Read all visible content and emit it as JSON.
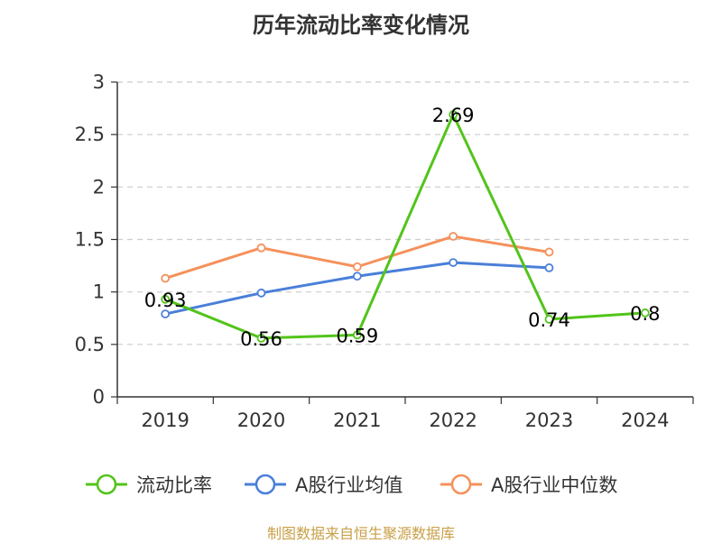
{
  "chart_data": {
    "type": "line",
    "title": "历年流动比率变化情况",
    "categories": [
      "2019",
      "2020",
      "2021",
      "2022",
      "2023",
      "2024"
    ],
    "ylim": [
      0,
      3
    ],
    "yticks": [
      "0",
      "0.5",
      "1",
      "1.5",
      "2",
      "2.5",
      "3"
    ],
    "grid": true,
    "legend_position": "bottom",
    "series": [
      {
        "name": "流动比率",
        "color": "#52c41a",
        "values": [
          0.93,
          0.56,
          0.59,
          2.69,
          0.74,
          0.8
        ],
        "labels": [
          "0.93",
          "0.56",
          "0.59",
          "2.69",
          "0.74",
          "0.8"
        ]
      },
      {
        "name": "A股行业均值",
        "color": "#4a7fd9",
        "values": [
          0.79,
          0.99,
          1.15,
          1.28,
          1.23,
          null
        ]
      },
      {
        "name": "A股行业中位数",
        "color": "#f5915b",
        "values": [
          1.13,
          1.42,
          1.24,
          1.53,
          1.38,
          null
        ]
      }
    ]
  },
  "footer": {
    "source": "制图数据来自恒生聚源数据库"
  }
}
